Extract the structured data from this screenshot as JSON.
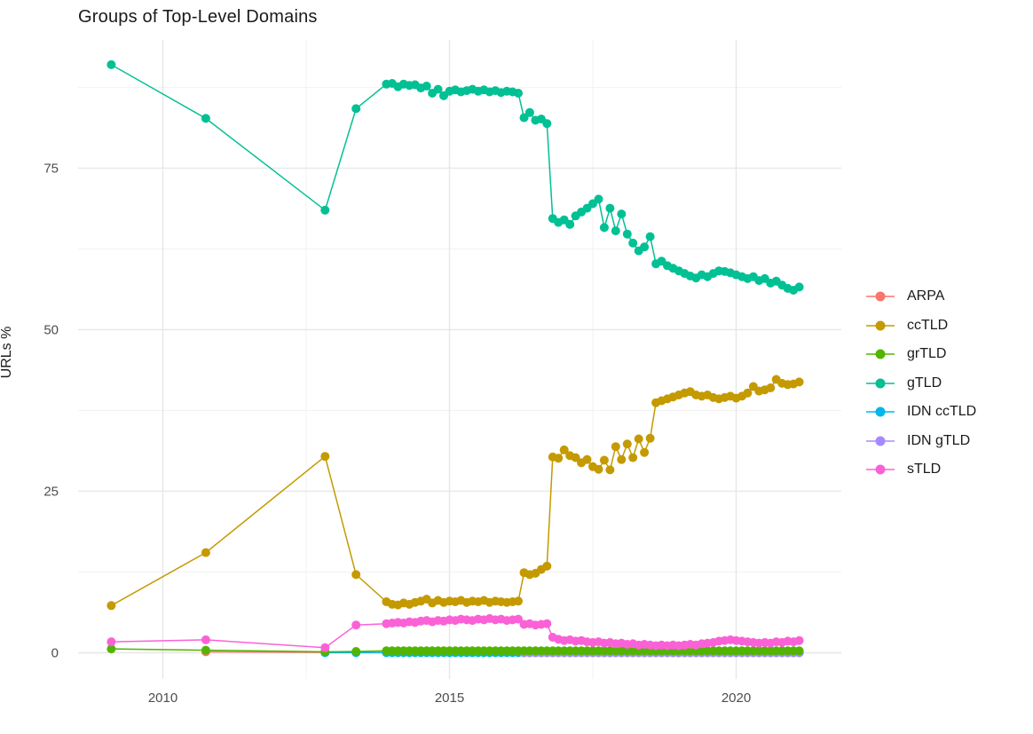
{
  "title": "Groups of Top-Level Domains",
  "axes": {
    "y_title": "URLs %",
    "y_ticks": [
      {
        "value": 0,
        "label": "0"
      },
      {
        "value": 25,
        "label": "25"
      },
      {
        "value": 50,
        "label": "50"
      },
      {
        "value": 75,
        "label": "75"
      }
    ],
    "y_minor": [
      12.5,
      37.5,
      62.5,
      87.5
    ],
    "x_ticks": [
      {
        "value": 2010,
        "label": "2010"
      },
      {
        "value": 2015,
        "label": "2015"
      },
      {
        "value": 2020,
        "label": "2020"
      }
    ],
    "x_minor": [
      2012.5,
      2017.5
    ]
  },
  "style_colors": {
    "grid_major": "#e7e7e7",
    "grid_minor": "#f2f2f2",
    "tick_text": "#4d4d4d",
    "title_text": "#1a1a1a"
  },
  "legend": {
    "items": [
      {
        "label": "ARPA",
        "color": "#F8766D"
      },
      {
        "label": "ccTLD",
        "color": "#C49A00"
      },
      {
        "label": "grTLD",
        "color": "#53B400"
      },
      {
        "label": "gTLD",
        "color": "#00C094"
      },
      {
        "label": "IDN ccTLD",
        "color": "#00B6EB"
      },
      {
        "label": "IDN gTLD",
        "color": "#A58AFF"
      },
      {
        "label": "sTLD",
        "color": "#FB61D7"
      }
    ]
  },
  "chart_data": {
    "type": "line",
    "title": "Groups of Top-Level Domains",
    "xlabel": "",
    "ylabel": "URLs %",
    "x_range_years": [
      2008.5,
      2021.8
    ],
    "ylim": [
      -5,
      95
    ],
    "grid": true,
    "legend_position": "right",
    "series": [
      {
        "name": "ARPA",
        "color": "#F8766D",
        "pre": [
          [
            2010.75,
            0.15
          ],
          [
            2012.83,
            0.05
          ],
          [
            2013.37,
            0.05
          ]
        ],
        "dense": {
          "x_start": 2013.9,
          "x_step": 0.1,
          "count": 73,
          "value": 0.05
        }
      },
      {
        "name": "ccTLD",
        "color": "#C49A00",
        "pre": [
          [
            2009.1,
            7.3
          ],
          [
            2010.75,
            15.5
          ],
          [
            2012.83,
            30.4
          ],
          [
            2013.37,
            12.1
          ]
        ],
        "dense": {
          "x_start": 2013.9,
          "x_step": 0.1,
          "count": 73,
          "values": [
            7.9,
            7.5,
            7.4,
            7.7,
            7.5,
            7.8,
            8.0,
            8.3,
            7.7,
            8.1,
            7.8,
            8.0,
            7.9,
            8.1,
            7.8,
            8.0,
            7.9,
            8.1,
            7.8,
            8.0,
            7.9,
            7.8,
            7.9,
            8.0,
            12.4,
            12.1,
            12.3,
            12.9,
            13.4,
            30.3,
            30.1,
            31.4,
            30.5,
            30.2,
            29.4,
            29.9,
            28.8,
            28.4,
            29.8,
            28.3,
            31.9,
            29.9,
            32.3,
            30.2,
            33.1,
            31.0,
            33.2,
            38.7,
            39.0,
            39.3,
            39.6,
            39.9,
            40.2,
            40.4,
            39.9,
            39.7,
            39.9,
            39.5,
            39.3,
            39.5,
            39.7,
            39.4,
            39.7,
            40.2,
            41.2,
            40.5,
            40.7,
            41.0,
            42.3,
            41.7,
            41.5,
            41.6,
            41.9
          ]
        }
      },
      {
        "name": "grTLD",
        "color": "#53B400",
        "pre": [
          [
            2009.1,
            0.6
          ],
          [
            2010.75,
            0.4
          ],
          [
            2012.83,
            0.15
          ],
          [
            2013.37,
            0.2
          ]
        ],
        "dense": {
          "x_start": 2013.9,
          "x_step": 0.1,
          "count": 73,
          "value": 0.3
        }
      },
      {
        "name": "gTLD",
        "color": "#00C094",
        "pre": [
          [
            2009.1,
            91.0
          ],
          [
            2010.75,
            82.7
          ],
          [
            2012.83,
            68.5
          ],
          [
            2013.37,
            84.2
          ]
        ],
        "dense": {
          "x_start": 2013.9,
          "x_step": 0.1,
          "count": 73,
          "values": [
            88.0,
            88.1,
            87.6,
            88.0,
            87.8,
            87.9,
            87.4,
            87.7,
            86.6,
            87.2,
            86.2,
            86.9,
            87.1,
            86.8,
            87.0,
            87.2,
            86.9,
            87.1,
            86.8,
            87.0,
            86.7,
            86.9,
            86.8,
            86.6,
            82.8,
            83.6,
            82.4,
            82.6,
            81.9,
            67.2,
            66.6,
            67.0,
            66.3,
            67.6,
            68.2,
            68.8,
            69.5,
            70.2,
            65.8,
            68.8,
            65.3,
            67.9,
            64.8,
            63.4,
            62.2,
            62.8,
            64.4,
            60.2,
            60.6,
            59.9,
            59.5,
            59.1,
            58.7,
            58.3,
            58.0,
            58.5,
            58.2,
            58.7,
            59.1,
            59.0,
            58.8,
            58.5,
            58.2,
            57.9,
            58.2,
            57.6,
            57.9,
            57.2,
            57.5,
            56.9,
            56.4,
            56.1,
            56.6
          ]
        }
      },
      {
        "name": "IDN ccTLD",
        "color": "#00B6EB",
        "pre": [
          [
            2012.83,
            0.02
          ],
          [
            2013.37,
            0.02
          ]
        ],
        "dense": {
          "x_start": 2013.9,
          "x_step": 0.1,
          "count": 73,
          "value": 0.02
        }
      },
      {
        "name": "IDN gTLD",
        "color": "#A58AFF",
        "pre": [],
        "dense": {
          "x_start": 2016.3,
          "x_step": 0.1,
          "count": 49,
          "value": 0.0
        }
      },
      {
        "name": "sTLD",
        "color": "#FB61D7",
        "pre": [
          [
            2009.1,
            1.7
          ],
          [
            2010.75,
            2.0
          ],
          [
            2012.83,
            0.8
          ],
          [
            2013.37,
            4.3
          ]
        ],
        "dense": {
          "x_start": 2013.9,
          "x_step": 0.1,
          "count": 73,
          "values": [
            4.5,
            4.6,
            4.7,
            4.6,
            4.8,
            4.7,
            4.9,
            5.0,
            4.8,
            5.0,
            4.9,
            5.1,
            5.0,
            5.2,
            5.1,
            5.0,
            5.2,
            5.1,
            5.3,
            5.1,
            5.2,
            5.0,
            5.1,
            5.2,
            4.4,
            4.5,
            4.3,
            4.4,
            4.5,
            2.4,
            2.1,
            1.9,
            2.0,
            1.8,
            1.9,
            1.7,
            1.6,
            1.7,
            1.5,
            1.6,
            1.4,
            1.5,
            1.3,
            1.4,
            1.2,
            1.3,
            1.2,
            1.1,
            1.2,
            1.1,
            1.2,
            1.1,
            1.2,
            1.3,
            1.2,
            1.4,
            1.5,
            1.6,
            1.8,
            1.9,
            2.0,
            1.9,
            1.8,
            1.7,
            1.6,
            1.5,
            1.6,
            1.5,
            1.7,
            1.6,
            1.8,
            1.7,
            1.9
          ]
        }
      }
    ]
  }
}
